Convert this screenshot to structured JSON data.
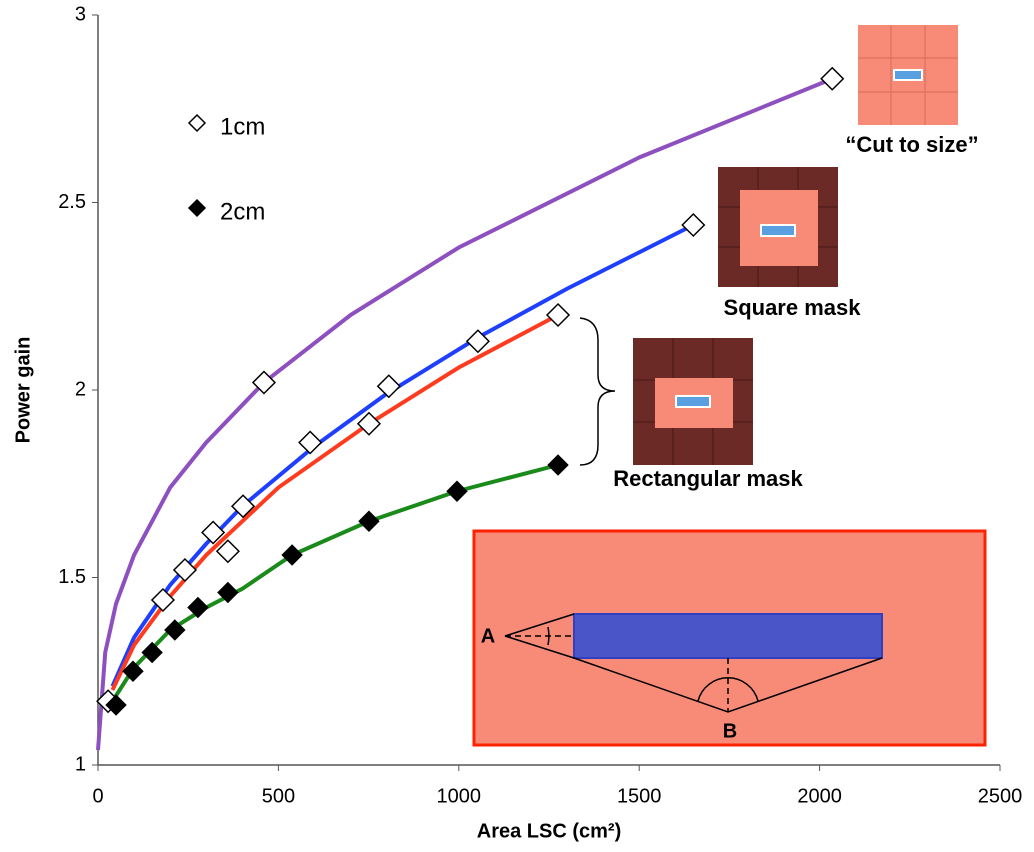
{
  "chart_data": {
    "type": "scatter",
    "xlabel": "Area LSC (cm²)",
    "ylabel": "Power gain",
    "xlim": [
      0,
      2500
    ],
    "ylim": [
      1,
      3
    ],
    "xticks": [
      0,
      500,
      1000,
      1500,
      2000,
      2500
    ],
    "yticks": [
      1,
      1.5,
      2,
      2.5,
      3
    ],
    "legend": "upper left",
    "series": [
      {
        "name": "1cm",
        "marker": "open-diamond",
        "color": "#000000",
        "x": [
          2035,
          1650,
          1275,
          460,
          1053,
          806,
          751,
          588,
          402,
          360,
          319,
          241,
          180,
          28
        ],
        "values": [
          2.83,
          2.44,
          2.2,
          2.02,
          2.13,
          2.01,
          1.91,
          1.86,
          1.69,
          1.57,
          1.62,
          1.52,
          1.44,
          1.17
        ]
      },
      {
        "name": "2cm",
        "marker": "filled-diamond",
        "color": "#000000",
        "x": [
          50,
          97,
          150,
          213,
          277,
          360,
          538,
          751,
          995,
          1275
        ],
        "values": [
          1.16,
          1.25,
          1.3,
          1.36,
          1.42,
          1.46,
          1.56,
          1.65,
          1.73,
          1.8
        ]
      },
      {
        "marker": "line",
        "color": "#8e4fbf",
        "x": [
          0,
          20,
          50,
          100,
          200,
          300,
          460,
          700,
          1000,
          1500,
          2035
        ],
        "values": [
          1.04,
          1.3,
          1.43,
          1.56,
          1.74,
          1.86,
          2.02,
          2.2,
          2.38,
          2.62,
          2.83
        ]
      },
      {
        "marker": "line",
        "color": "#1f3fff",
        "x": [
          40,
          100,
          200,
          300,
          400,
          600,
          800,
          1053,
          1300,
          1650
        ],
        "values": [
          1.21,
          1.34,
          1.48,
          1.59,
          1.69,
          1.85,
          1.99,
          2.14,
          2.27,
          2.44
        ]
      },
      {
        "marker": "line",
        "color": "#ff3b1f",
        "x": [
          40,
          100,
          200,
          300,
          500,
          751,
          1000,
          1275
        ],
        "values": [
          1.2,
          1.32,
          1.45,
          1.56,
          1.74,
          1.91,
          2.06,
          2.2
        ]
      },
      {
        "marker": "line",
        "color": "#1a8a1a",
        "x": [
          40,
          100,
          200,
          300,
          400,
          538,
          751,
          995,
          1275
        ],
        "values": [
          1.17,
          1.26,
          1.36,
          1.42,
          1.47,
          1.56,
          1.65,
          1.73,
          1.8
        ]
      }
    ],
    "annotations": [
      "“Cut to size”",
      "Square mask",
      "Rectangular mask",
      "A",
      "B"
    ]
  }
}
